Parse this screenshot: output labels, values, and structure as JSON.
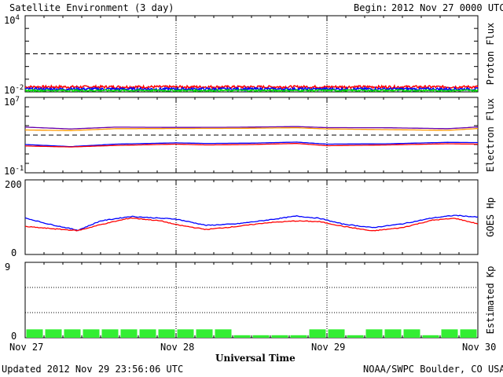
{
  "header": {
    "title": "Satellite Environment (3 day)",
    "begin_label": "Begin:",
    "begin_value": "2012 Nov 27 0000 UTC"
  },
  "footer": {
    "updated": "Updated 2012 Nov 29 23:56:06 UTC",
    "credit": "NOAA/SWPC Boulder, CO USA",
    "xlabel": "Universal Time"
  },
  "colors": {
    "red": "#ff0000",
    "blue": "#0000ff",
    "green": "#00dd00",
    "purple": "#6600aa",
    "orange": "#ff9900",
    "kp_green": "#33ee33"
  },
  "chart_data": [
    {
      "type": "line",
      "ylabel": "Proton Flux",
      "yscale": "log",
      "ylim": [
        0.01,
        10000
      ],
      "yticks": [
        {
          "base": "10",
          "exp": "4"
        },
        {
          "base": "10",
          "exp": "-2"
        }
      ],
      "threshold": 10,
      "x": [
        "Nov 27",
        "Nov 28",
        "Nov 29",
        "Nov 30"
      ],
      "series": [
        {
          "color": "red",
          "level": 0.025,
          "noise": 0.006
        },
        {
          "color": "blue",
          "level": 0.017,
          "noise": 0.004
        },
        {
          "color": "green",
          "level": 0.013,
          "noise": 0.002
        }
      ]
    },
    {
      "type": "line",
      "ylabel": "Electron Flux",
      "yscale": "log",
      "ylim": [
        0.1,
        10000000
      ],
      "yticks": [
        {
          "base": "10",
          "exp": "7"
        },
        {
          "base": "10",
          "exp": "-1"
        }
      ],
      "threshold": 1000,
      "series": [
        {
          "color": "purple",
          "points": [
            [
              0,
              7000
            ],
            [
              0.3,
              4500
            ],
            [
              0.6,
              7000
            ],
            [
              1,
              6500
            ],
            [
              1.4,
              6800
            ],
            [
              1.8,
              8000
            ],
            [
              2,
              6200
            ],
            [
              2.4,
              6000
            ],
            [
              2.8,
              4800
            ],
            [
              3,
              7200
            ]
          ]
        },
        {
          "color": "orange",
          "points": [
            [
              0,
              3500
            ],
            [
              0.3,
              3000
            ],
            [
              0.6,
              4800
            ],
            [
              1,
              5000
            ],
            [
              1.4,
              5200
            ],
            [
              1.8,
              6000
            ],
            [
              2,
              4500
            ],
            [
              2.4,
              3800
            ],
            [
              2.8,
              3200
            ],
            [
              3,
              5000
            ]
          ]
        },
        {
          "color": "blue",
          "points": [
            [
              0,
              100
            ],
            [
              0.3,
              60
            ],
            [
              0.6,
              110
            ],
            [
              1,
              150
            ],
            [
              1.2,
              130
            ],
            [
              1.5,
              140
            ],
            [
              1.8,
              180
            ],
            [
              2,
              110
            ],
            [
              2.4,
              120
            ],
            [
              2.8,
              170
            ],
            [
              3,
              160
            ]
          ]
        },
        {
          "color": "red",
          "points": [
            [
              0,
              70
            ],
            [
              0.3,
              55
            ],
            [
              0.6,
              80
            ],
            [
              1,
              110
            ],
            [
              1.2,
              90
            ],
            [
              1.5,
              100
            ],
            [
              1.8,
              130
            ],
            [
              2,
              75
            ],
            [
              2.4,
              90
            ],
            [
              2.8,
              120
            ],
            [
              3,
              110
            ]
          ]
        }
      ]
    },
    {
      "type": "line",
      "ylabel": "GOES Hp",
      "ylim": [
        0,
        200
      ],
      "yticks": [
        "200",
        "0"
      ],
      "series": [
        {
          "color": "blue",
          "points": [
            [
              0,
              98
            ],
            [
              0.15,
              82
            ],
            [
              0.35,
              65
            ],
            [
              0.5,
              90
            ],
            [
              0.7,
              102
            ],
            [
              0.9,
              97
            ],
            [
              1.0,
              95
            ],
            [
              1.2,
              78
            ],
            [
              1.4,
              82
            ],
            [
              1.6,
              92
            ],
            [
              1.8,
              103
            ],
            [
              1.95,
              97
            ],
            [
              2.1,
              82
            ],
            [
              2.3,
              72
            ],
            [
              2.5,
              82
            ],
            [
              2.7,
              98
            ],
            [
              2.85,
              105
            ],
            [
              3,
              100
            ]
          ]
        },
        {
          "color": "red",
          "points": [
            [
              0,
              75
            ],
            [
              0.15,
              70
            ],
            [
              0.35,
              64
            ],
            [
              0.5,
              80
            ],
            [
              0.7,
              98
            ],
            [
              0.9,
              90
            ],
            [
              1.0,
              80
            ],
            [
              1.2,
              67
            ],
            [
              1.4,
              75
            ],
            [
              1.6,
              85
            ],
            [
              1.8,
              90
            ],
            [
              1.95,
              88
            ],
            [
              2.1,
              76
            ],
            [
              2.3,
              63
            ],
            [
              2.5,
              72
            ],
            [
              2.7,
              92
            ],
            [
              2.85,
              97
            ],
            [
              3,
              82
            ]
          ]
        }
      ]
    },
    {
      "type": "bar",
      "ylabel": "Estimated Kp",
      "ylim": [
        0,
        9
      ],
      "yticks": [
        "9",
        "0"
      ],
      "values": [
        1,
        1,
        1,
        1,
        1,
        1,
        1,
        1,
        1,
        1,
        1,
        0.3,
        0.3,
        0.3,
        0.3,
        1,
        1,
        0.3,
        1,
        1,
        1,
        0.3,
        1,
        1
      ]
    }
  ]
}
